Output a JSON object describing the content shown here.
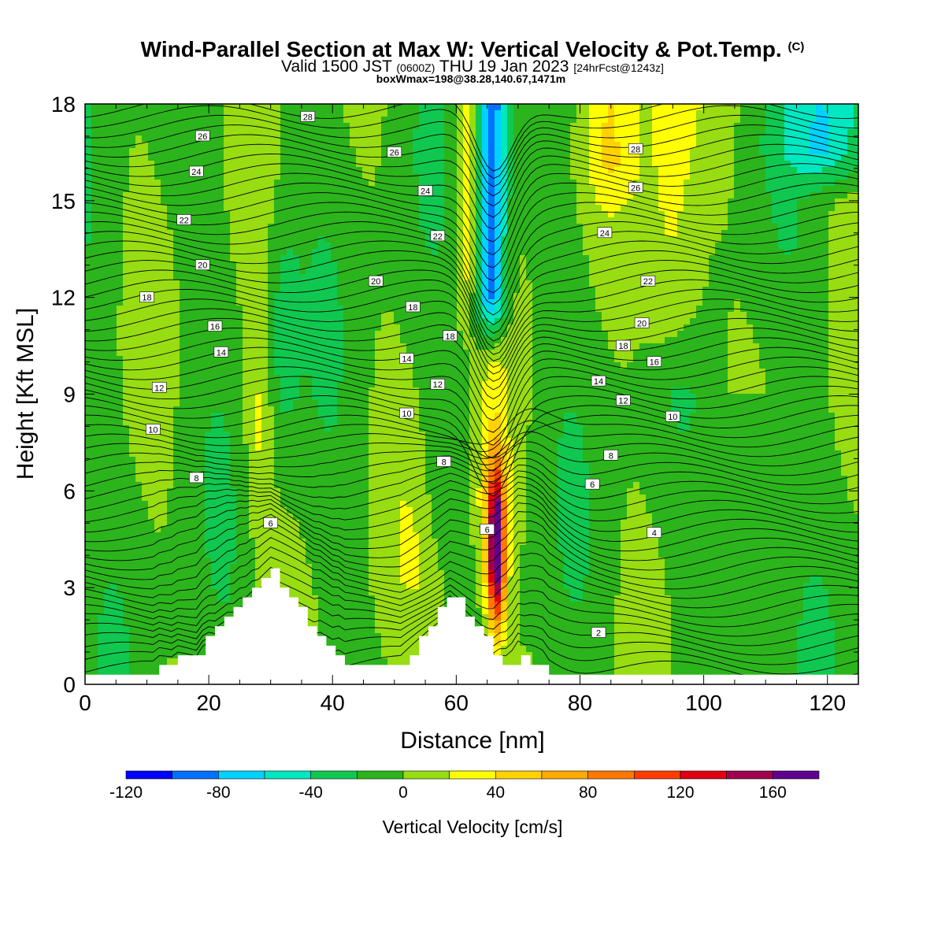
{
  "header": {
    "title": "Wind-Parallel Section at Max W: Vertical Velocity & Pot.Temp.",
    "copyright_mark": "(C)",
    "valid_prefix": "Valid 1500 JST",
    "valid_z": "(0600Z)",
    "valid_date": "THU 19 Jan 2023",
    "forecast": "[24hrFcst@1243z]",
    "box_info": "boxWmax=198@38.28,140.67,1471m"
  },
  "chart_data": {
    "type": "heatmap",
    "xlabel": "Distance [nm]",
    "ylabel": "Height [Kft MSL]",
    "xlim": [
      0,
      125
    ],
    "ylim": [
      0,
      18
    ],
    "x_ticks": [
      0,
      20,
      40,
      60,
      80,
      100,
      120
    ],
    "y_ticks": [
      0,
      3,
      6,
      9,
      12,
      15,
      18
    ],
    "grid": false,
    "colorbar": {
      "label": "Vertical Velocity [cm/s]",
      "bounds": [
        -120,
        -100,
        -80,
        -60,
        -40,
        -20,
        0,
        20,
        40,
        60,
        80,
        100,
        120,
        140,
        160,
        180
      ],
      "tick_labels": [
        -120,
        -80,
        -40,
        0,
        40,
        80,
        120,
        160
      ],
      "colors": [
        "#0000ff",
        "#0070ff",
        "#00d2ff",
        "#00e8c0",
        "#10c850",
        "#2cb41c",
        "#98dc12",
        "#ffff00",
        "#ffd200",
        "#ffaa00",
        "#ff7800",
        "#ff3c00",
        "#e00010",
        "#a00050",
        "#600090"
      ]
    },
    "theta_contour_labels": [
      {
        "text": "28",
        "x": 36,
        "y": 17.6
      },
      {
        "text": "26",
        "x": 19,
        "y": 17.0
      },
      {
        "text": "26",
        "x": 50,
        "y": 16.5
      },
      {
        "text": "28",
        "x": 89,
        "y": 16.6
      },
      {
        "text": "24",
        "x": 18,
        "y": 15.9
      },
      {
        "text": "24",
        "x": 55,
        "y": 15.3
      },
      {
        "text": "26",
        "x": 89,
        "y": 15.4
      },
      {
        "text": "22",
        "x": 16,
        "y": 14.4
      },
      {
        "text": "22",
        "x": 57,
        "y": 13.9
      },
      {
        "text": "24",
        "x": 84,
        "y": 14.0
      },
      {
        "text": "20",
        "x": 19,
        "y": 13.0
      },
      {
        "text": "20",
        "x": 47,
        "y": 12.5
      },
      {
        "text": "22",
        "x": 91,
        "y": 12.5
      },
      {
        "text": "18",
        "x": 10,
        "y": 12.0
      },
      {
        "text": "18",
        "x": 53,
        "y": 11.7
      },
      {
        "text": "16",
        "x": 21,
        "y": 11.1
      },
      {
        "text": "18",
        "x": 59,
        "y": 10.8
      },
      {
        "text": "20",
        "x": 90,
        "y": 11.2
      },
      {
        "text": "14",
        "x": 22,
        "y": 10.3
      },
      {
        "text": "14",
        "x": 52,
        "y": 10.1
      },
      {
        "text": "18",
        "x": 87,
        "y": 10.5
      },
      {
        "text": "16",
        "x": 92,
        "y": 10.0
      },
      {
        "text": "12",
        "x": 12,
        "y": 9.2
      },
      {
        "text": "12",
        "x": 57,
        "y": 9.3
      },
      {
        "text": "14",
        "x": 83,
        "y": 9.4
      },
      {
        "text": "12",
        "x": 87,
        "y": 8.8
      },
      {
        "text": "10",
        "x": 11,
        "y": 7.9
      },
      {
        "text": "10",
        "x": 52,
        "y": 8.4
      },
      {
        "text": "10",
        "x": 95,
        "y": 8.3
      },
      {
        "text": "8",
        "x": 18,
        "y": 6.4
      },
      {
        "text": "8",
        "x": 58,
        "y": 6.9
      },
      {
        "text": "8",
        "x": 85,
        "y": 7.1
      },
      {
        "text": "6",
        "x": 82,
        "y": 6.2
      },
      {
        "text": "6",
        "x": 30,
        "y": 5.0
      },
      {
        "text": "6",
        "x": 65,
        "y": 4.8
      },
      {
        "text": "4",
        "x": 92,
        "y": 4.7
      },
      {
        "text": "2",
        "x": 83,
        "y": 1.6
      }
    ]
  }
}
